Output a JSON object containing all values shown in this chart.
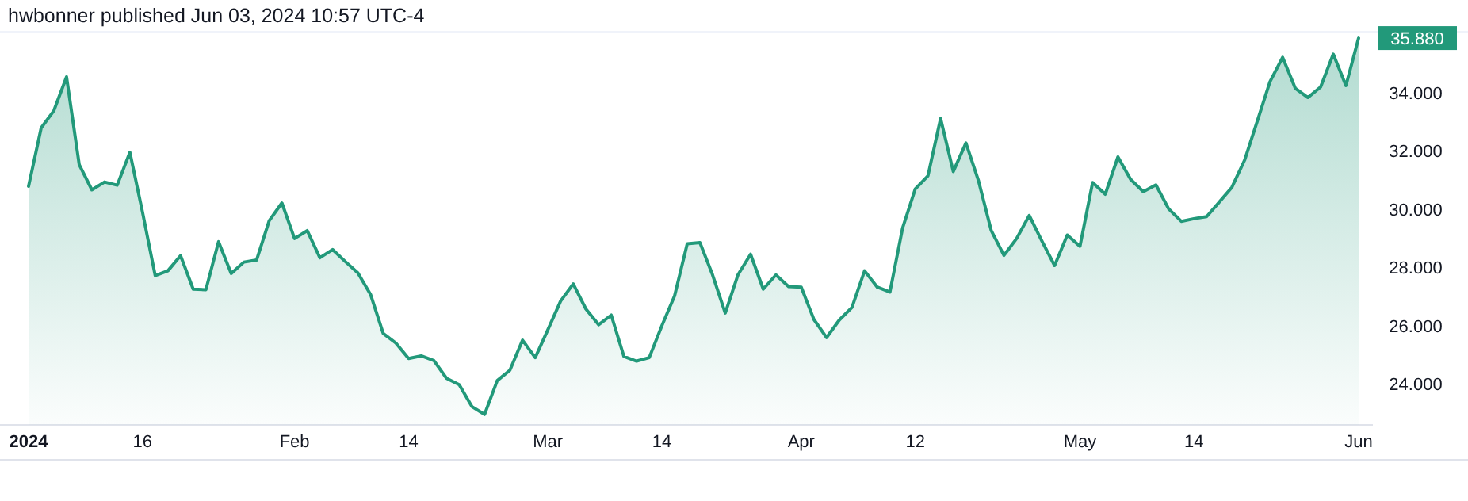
{
  "chart_data": {
    "type": "area",
    "title": "hwbonner published Jun 03, 2024 10:57 UTC-4",
    "categories": [
      "2024",
      null,
      null,
      null,
      null,
      null,
      null,
      null,
      null,
      "16",
      null,
      null,
      null,
      null,
      null,
      null,
      null,
      null,
      null,
      null,
      null,
      "Feb",
      null,
      null,
      null,
      null,
      null,
      null,
      null,
      null,
      "14",
      null,
      null,
      null,
      null,
      null,
      null,
      null,
      null,
      null,
      null,
      "Mar",
      null,
      null,
      null,
      null,
      null,
      null,
      null,
      null,
      "14",
      null,
      null,
      null,
      null,
      null,
      null,
      null,
      null,
      null,
      null,
      "Apr",
      null,
      null,
      null,
      null,
      null,
      null,
      null,
      null,
      "12",
      null,
      null,
      null,
      null,
      null,
      null,
      null,
      null,
      null,
      null,
      null,
      null,
      "May",
      null,
      null,
      null,
      null,
      null,
      null,
      null,
      null,
      "14",
      null,
      null,
      null,
      null,
      null,
      null,
      null,
      null,
      null,
      null,
      null,
      null,
      "Jun"
    ],
    "series": [
      {
        "color": "#22997a",
        "values": [
          30.79,
          32.8,
          33.39,
          34.55,
          31.54,
          30.67,
          30.94,
          30.83,
          31.96,
          29.9,
          27.73,
          27.89,
          28.41,
          27.26,
          27.24,
          28.89,
          27.8,
          28.19,
          28.26,
          29.61,
          30.22,
          29.0,
          29.27,
          28.34,
          28.62,
          28.21,
          27.82,
          27.08,
          25.74,
          25.41,
          24.88,
          24.97,
          24.81,
          24.2,
          23.98,
          23.23,
          22.96,
          24.12,
          24.48,
          25.51,
          24.91,
          25.87,
          26.85,
          27.44,
          26.58,
          26.04,
          26.37,
          24.95,
          24.79,
          24.91,
          26.01,
          27.03,
          28.82,
          28.86,
          27.75,
          26.44,
          27.75,
          28.46,
          27.26,
          27.75,
          27.35,
          27.33,
          26.22,
          25.6,
          26.2,
          26.63,
          27.89,
          27.33,
          27.16,
          29.36,
          30.7,
          31.15,
          33.12,
          31.3,
          32.28,
          30.97,
          29.27,
          28.42,
          29.0,
          29.79,
          28.91,
          28.07,
          29.12,
          28.73,
          30.92,
          30.52,
          31.8,
          31.03,
          30.61,
          30.84,
          30.02,
          29.59,
          29.68,
          29.75,
          30.25,
          30.76,
          31.69,
          33.03,
          34.38,
          35.22,
          34.16,
          33.84,
          34.2,
          35.33,
          34.25,
          35.88
        ]
      }
    ],
    "ylim": [
      22.6,
      36.1
    ],
    "yticks": [
      {
        "value": 24,
        "label": "24.000"
      },
      {
        "value": 26,
        "label": "26.000"
      },
      {
        "value": 28,
        "label": "28.000"
      },
      {
        "value": 30,
        "label": "30.000"
      },
      {
        "value": 32,
        "label": "32.000"
      },
      {
        "value": 34,
        "label": "34.000"
      }
    ],
    "annotations": [
      {
        "text": "35.880",
        "x": "Jun",
        "y": 35.88
      }
    ],
    "grid": false
  }
}
